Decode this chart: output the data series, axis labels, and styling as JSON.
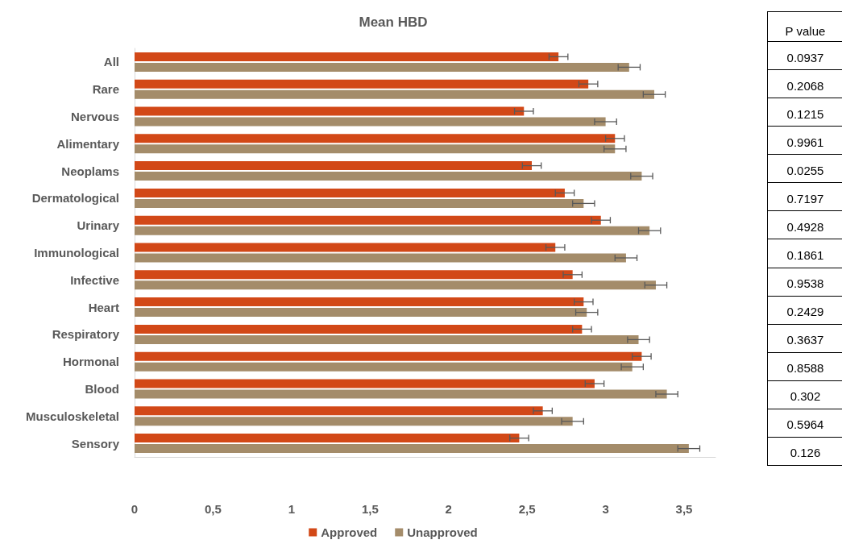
{
  "chart_data": [
    {
      "type": "bar",
      "title": "Mean HBD",
      "orientation": "horizontal",
      "categories": [
        "All",
        "Rare",
        "Nervous",
        "Alimentary",
        "Neoplams",
        "Dermatological",
        "Urinary",
        "Immunological",
        "Infective",
        "Heart",
        "Respiratory",
        "Hormonal",
        "Blood",
        "Musculoskeletal",
        "Sensory"
      ],
      "series": [
        {
          "name": "Approved",
          "color": "#d24817",
          "values": [
            2.7,
            2.89,
            2.48,
            3.06,
            2.53,
            2.74,
            2.97,
            2.68,
            2.79,
            2.86,
            2.85,
            3.23,
            2.93,
            2.6,
            2.45
          ],
          "errors": [
            0.06,
            0.06,
            0.06,
            0.06,
            0.06,
            0.06,
            0.06,
            0.06,
            0.06,
            0.06,
            0.06,
            0.06,
            0.06,
            0.06,
            0.06
          ]
        },
        {
          "name": "Unapproved",
          "color": "#a48c6a",
          "values": [
            3.15,
            3.31,
            3.0,
            3.06,
            3.23,
            2.86,
            3.28,
            3.13,
            3.32,
            2.88,
            3.21,
            3.17,
            3.39,
            2.79,
            3.53
          ],
          "errors": [
            0.07,
            0.07,
            0.07,
            0.07,
            0.07,
            0.07,
            0.07,
            0.07,
            0.07,
            0.07,
            0.07,
            0.07,
            0.07,
            0.07,
            0.07
          ]
        }
      ],
      "xlim": [
        0,
        3.7
      ],
      "xticks": [
        0,
        {
          "value": 0.5,
          "label": "0,5"
        },
        1,
        {
          "value": 1.5,
          "label": "1,5"
        },
        2,
        {
          "value": 2.5,
          "label": "2,5"
        },
        3,
        {
          "value": 3.5,
          "label": "3,5"
        }
      ],
      "legend": "bottom",
      "grid": false
    },
    {
      "type": "other",
      "title": "P value",
      "annotations": [
        "0.0937",
        "0.2068",
        "0.1215",
        "0.9961",
        "0.0255",
        "0.7197",
        "0.4928",
        "0.1861",
        "0.9538",
        "0.2429",
        "0.3637",
        "0.8588",
        "0.302",
        "0.5964",
        "0.126"
      ]
    }
  ]
}
